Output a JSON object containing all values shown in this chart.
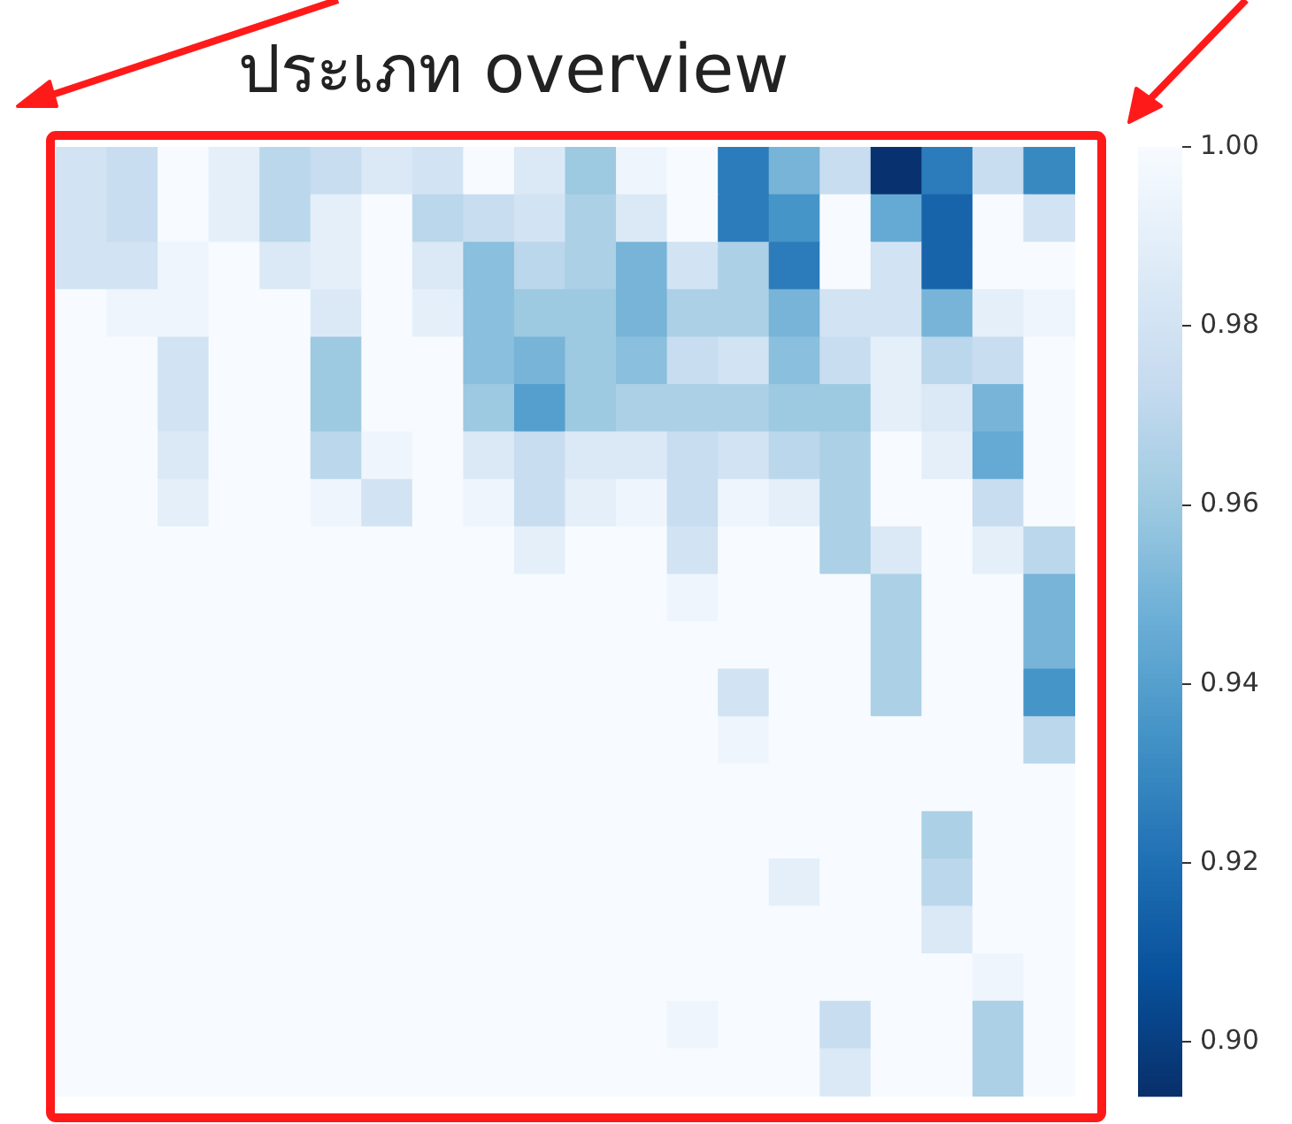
{
  "chart_data": {
    "type": "heatmap",
    "title": "ประเภท overview",
    "categories": [
      null,
      null,
      null,
      null,
      null,
      null,
      null,
      null,
      null,
      null,
      null,
      null,
      null,
      null,
      null,
      null,
      null,
      null,
      null,
      null
    ],
    "y_categories": [
      null,
      null,
      null,
      null,
      null,
      null,
      null,
      null,
      null,
      null,
      null,
      null,
      null,
      null,
      null,
      null,
      null,
      null,
      null,
      null
    ],
    "cells": [
      [
        0.98,
        0.975,
        1.0,
        0.99,
        0.97,
        0.975,
        0.985,
        0.98,
        1.0,
        0.985,
        0.96,
        0.995,
        1.0,
        0.925,
        0.95,
        0.975,
        0.895,
        0.925,
        0.975,
        0.93
      ],
      [
        0.98,
        0.975,
        1.0,
        0.99,
        0.97,
        0.99,
        1.0,
        0.97,
        0.975,
        0.98,
        0.965,
        0.985,
        1.0,
        0.925,
        0.935,
        1.0,
        0.945,
        0.915,
        1.0,
        0.98
      ],
      [
        0.98,
        0.98,
        0.995,
        1.0,
        0.985,
        0.99,
        1.0,
        0.985,
        0.955,
        0.97,
        0.965,
        0.95,
        0.98,
        0.965,
        0.925,
        1.0,
        0.98,
        0.915,
        1.0,
        1.0
      ],
      [
        1.0,
        0.995,
        0.995,
        1.0,
        1.0,
        0.985,
        1.0,
        0.99,
        0.955,
        0.96,
        0.96,
        0.95,
        0.965,
        0.965,
        0.95,
        0.98,
        0.98,
        0.95,
        0.99,
        0.995
      ],
      [
        1.0,
        1.0,
        0.98,
        1.0,
        1.0,
        0.96,
        1.0,
        1.0,
        0.955,
        0.95,
        0.96,
        0.955,
        0.975,
        0.98,
        0.955,
        0.975,
        0.99,
        0.97,
        0.975,
        1.0
      ],
      [
        1.0,
        1.0,
        0.98,
        1.0,
        1.0,
        0.96,
        1.0,
        1.0,
        0.96,
        0.94,
        0.96,
        0.965,
        0.965,
        0.965,
        0.96,
        0.96,
        0.99,
        0.985,
        0.95,
        1.0
      ],
      [
        1.0,
        1.0,
        0.985,
        1.0,
        1.0,
        0.97,
        0.995,
        1.0,
        0.985,
        0.975,
        0.985,
        0.985,
        0.975,
        0.98,
        0.97,
        0.965,
        1.0,
        0.99,
        0.945,
        1.0
      ],
      [
        1.0,
        1.0,
        0.99,
        1.0,
        1.0,
        0.995,
        0.98,
        1.0,
        0.995,
        0.975,
        0.99,
        0.995,
        0.975,
        0.995,
        0.99,
        0.965,
        1.0,
        1.0,
        0.975,
        1.0
      ],
      [
        1.0,
        1.0,
        1.0,
        1.0,
        1.0,
        1.0,
        1.0,
        1.0,
        1.0,
        0.99,
        1.0,
        1.0,
        0.98,
        1.0,
        1.0,
        0.965,
        0.985,
        1.0,
        0.99,
        0.97
      ],
      [
        1.0,
        1.0,
        1.0,
        1.0,
        1.0,
        1.0,
        1.0,
        1.0,
        1.0,
        1.0,
        1.0,
        1.0,
        0.995,
        1.0,
        1.0,
        1.0,
        0.965,
        1.0,
        1.0,
        0.95
      ],
      [
        1.0,
        1.0,
        1.0,
        1.0,
        1.0,
        1.0,
        1.0,
        1.0,
        1.0,
        1.0,
        1.0,
        1.0,
        1.0,
        1.0,
        1.0,
        1.0,
        0.965,
        1.0,
        1.0,
        0.95
      ],
      [
        1.0,
        1.0,
        1.0,
        1.0,
        1.0,
        1.0,
        1.0,
        1.0,
        1.0,
        1.0,
        1.0,
        1.0,
        1.0,
        0.98,
        1.0,
        1.0,
        0.965,
        1.0,
        1.0,
        0.935
      ],
      [
        1.0,
        1.0,
        1.0,
        1.0,
        1.0,
        1.0,
        1.0,
        1.0,
        1.0,
        1.0,
        1.0,
        1.0,
        1.0,
        0.995,
        1.0,
        1.0,
        1.0,
        1.0,
        1.0,
        0.97
      ],
      [
        1.0,
        1.0,
        1.0,
        1.0,
        1.0,
        1.0,
        1.0,
        1.0,
        1.0,
        1.0,
        1.0,
        1.0,
        1.0,
        1.0,
        1.0,
        1.0,
        1.0,
        1.0,
        1.0,
        1.0
      ],
      [
        1.0,
        1.0,
        1.0,
        1.0,
        1.0,
        1.0,
        1.0,
        1.0,
        1.0,
        1.0,
        1.0,
        1.0,
        1.0,
        1.0,
        1.0,
        1.0,
        1.0,
        0.965,
        1.0,
        1.0
      ],
      [
        1.0,
        1.0,
        1.0,
        1.0,
        1.0,
        1.0,
        1.0,
        1.0,
        1.0,
        1.0,
        1.0,
        1.0,
        1.0,
        1.0,
        0.99,
        1.0,
        1.0,
        0.97,
        1.0,
        1.0
      ],
      [
        1.0,
        1.0,
        1.0,
        1.0,
        1.0,
        1.0,
        1.0,
        1.0,
        1.0,
        1.0,
        1.0,
        1.0,
        1.0,
        1.0,
        1.0,
        1.0,
        1.0,
        0.985,
        1.0,
        1.0
      ],
      [
        1.0,
        1.0,
        1.0,
        1.0,
        1.0,
        1.0,
        1.0,
        1.0,
        1.0,
        1.0,
        1.0,
        1.0,
        1.0,
        1.0,
        1.0,
        1.0,
        1.0,
        1.0,
        0.995,
        1.0
      ],
      [
        1.0,
        1.0,
        1.0,
        1.0,
        1.0,
        1.0,
        1.0,
        1.0,
        1.0,
        1.0,
        1.0,
        1.0,
        0.995,
        1.0,
        1.0,
        0.975,
        1.0,
        1.0,
        0.965,
        1.0
      ],
      [
        1.0,
        1.0,
        1.0,
        1.0,
        1.0,
        1.0,
        1.0,
        1.0,
        1.0,
        1.0,
        1.0,
        1.0,
        1.0,
        1.0,
        1.0,
        0.985,
        1.0,
        1.0,
        0.965,
        1.0
      ]
    ],
    "clim": [
      0.894,
      1.0
    ],
    "cticks": [
      {
        "value": 1.0,
        "label": "1.00"
      },
      0.98,
      0.96,
      0.94,
      0.92,
      {
        "value": 0.9,
        "label": "0.90"
      }
    ]
  }
}
